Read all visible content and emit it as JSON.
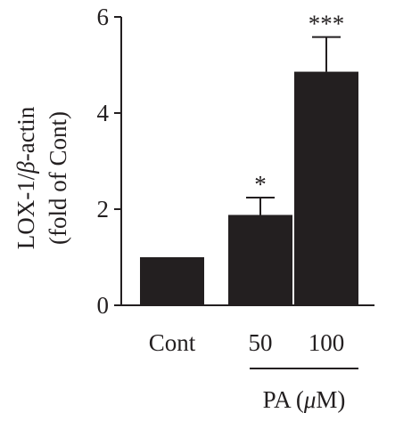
{
  "chart_data": {
    "type": "bar",
    "title": "",
    "ylabel_line1_prefix": "LOX-1/",
    "ylabel_line1_italic": "β",
    "ylabel_line1_suffix": "-actin",
    "ylabel_line2": "(fold of Cont)",
    "group_label_prefix": "PA (",
    "group_label_italic": "μ",
    "group_label_suffix": "M)",
    "ylim": [
      0,
      6
    ],
    "yticks": [
      "0",
      "2",
      "4",
      "6"
    ],
    "categories": [
      "Cont",
      "50",
      "100"
    ],
    "values": [
      1.0,
      1.88,
      4.86
    ],
    "error": [
      0,
      0.36,
      0.72
    ],
    "significance": [
      "",
      "*",
      "***"
    ],
    "bar_color": "#231f20",
    "grid": false
  }
}
